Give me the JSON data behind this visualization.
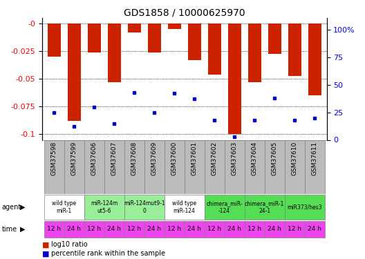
{
  "title": "GDS1858 / 10000625970",
  "samples": [
    "GSM37598",
    "GSM37599",
    "GSM37606",
    "GSM37607",
    "GSM37608",
    "GSM37609",
    "GSM37600",
    "GSM37601",
    "GSM37602",
    "GSM37603",
    "GSM37604",
    "GSM37605",
    "GSM37610",
    "GSM37611"
  ],
  "log10_ratio": [
    -0.03,
    -0.088,
    -0.026,
    -0.053,
    -0.008,
    -0.026,
    -0.005,
    -0.033,
    -0.046,
    -0.1,
    -0.053,
    -0.027,
    -0.047,
    -0.065
  ],
  "percentile_rank": [
    25,
    12,
    30,
    15,
    43,
    25,
    42,
    37,
    18,
    3,
    18,
    38,
    18,
    20
  ],
  "ylim_left": [
    -0.105,
    0.005
  ],
  "ylim_right": [
    0,
    110.25
  ],
  "yticks_left": [
    0.0,
    -0.025,
    -0.05,
    -0.075,
    -0.1
  ],
  "yticks_right": [
    0,
    25,
    50,
    75,
    100
  ],
  "bar_color": "#cc2200",
  "dot_color": "#0000cc",
  "agent_groups": [
    {
      "label": "wild type\nmiR-1",
      "cols": [
        0,
        1
      ],
      "color": "#ffffff"
    },
    {
      "label": "miR-124m\nut5-6",
      "cols": [
        2,
        3
      ],
      "color": "#99ee99"
    },
    {
      "label": "miR-124mut9-1\n0",
      "cols": [
        4,
        5
      ],
      "color": "#99ee99"
    },
    {
      "label": "wild type\nmiR-124",
      "cols": [
        6,
        7
      ],
      "color": "#ffffff"
    },
    {
      "label": "chimera_miR-\n-124",
      "cols": [
        8,
        9
      ],
      "color": "#55dd55"
    },
    {
      "label": "chimera_miR-1\n24-1",
      "cols": [
        10,
        11
      ],
      "color": "#55dd55"
    },
    {
      "label": "miR373/hes3",
      "cols": [
        12,
        13
      ],
      "color": "#55dd55"
    }
  ],
  "time_labels": [
    "12 h",
    "24 h",
    "12 h",
    "24 h",
    "12 h",
    "24 h",
    "12 h",
    "24 h",
    "12 h",
    "24 h",
    "12 h",
    "24 h",
    "12 h",
    "24 h"
  ],
  "time_color": "#ee44ee",
  "sample_bg_color": "#bbbbbb",
  "figsize": [
    5.28,
    3.75
  ],
  "dpi": 100
}
